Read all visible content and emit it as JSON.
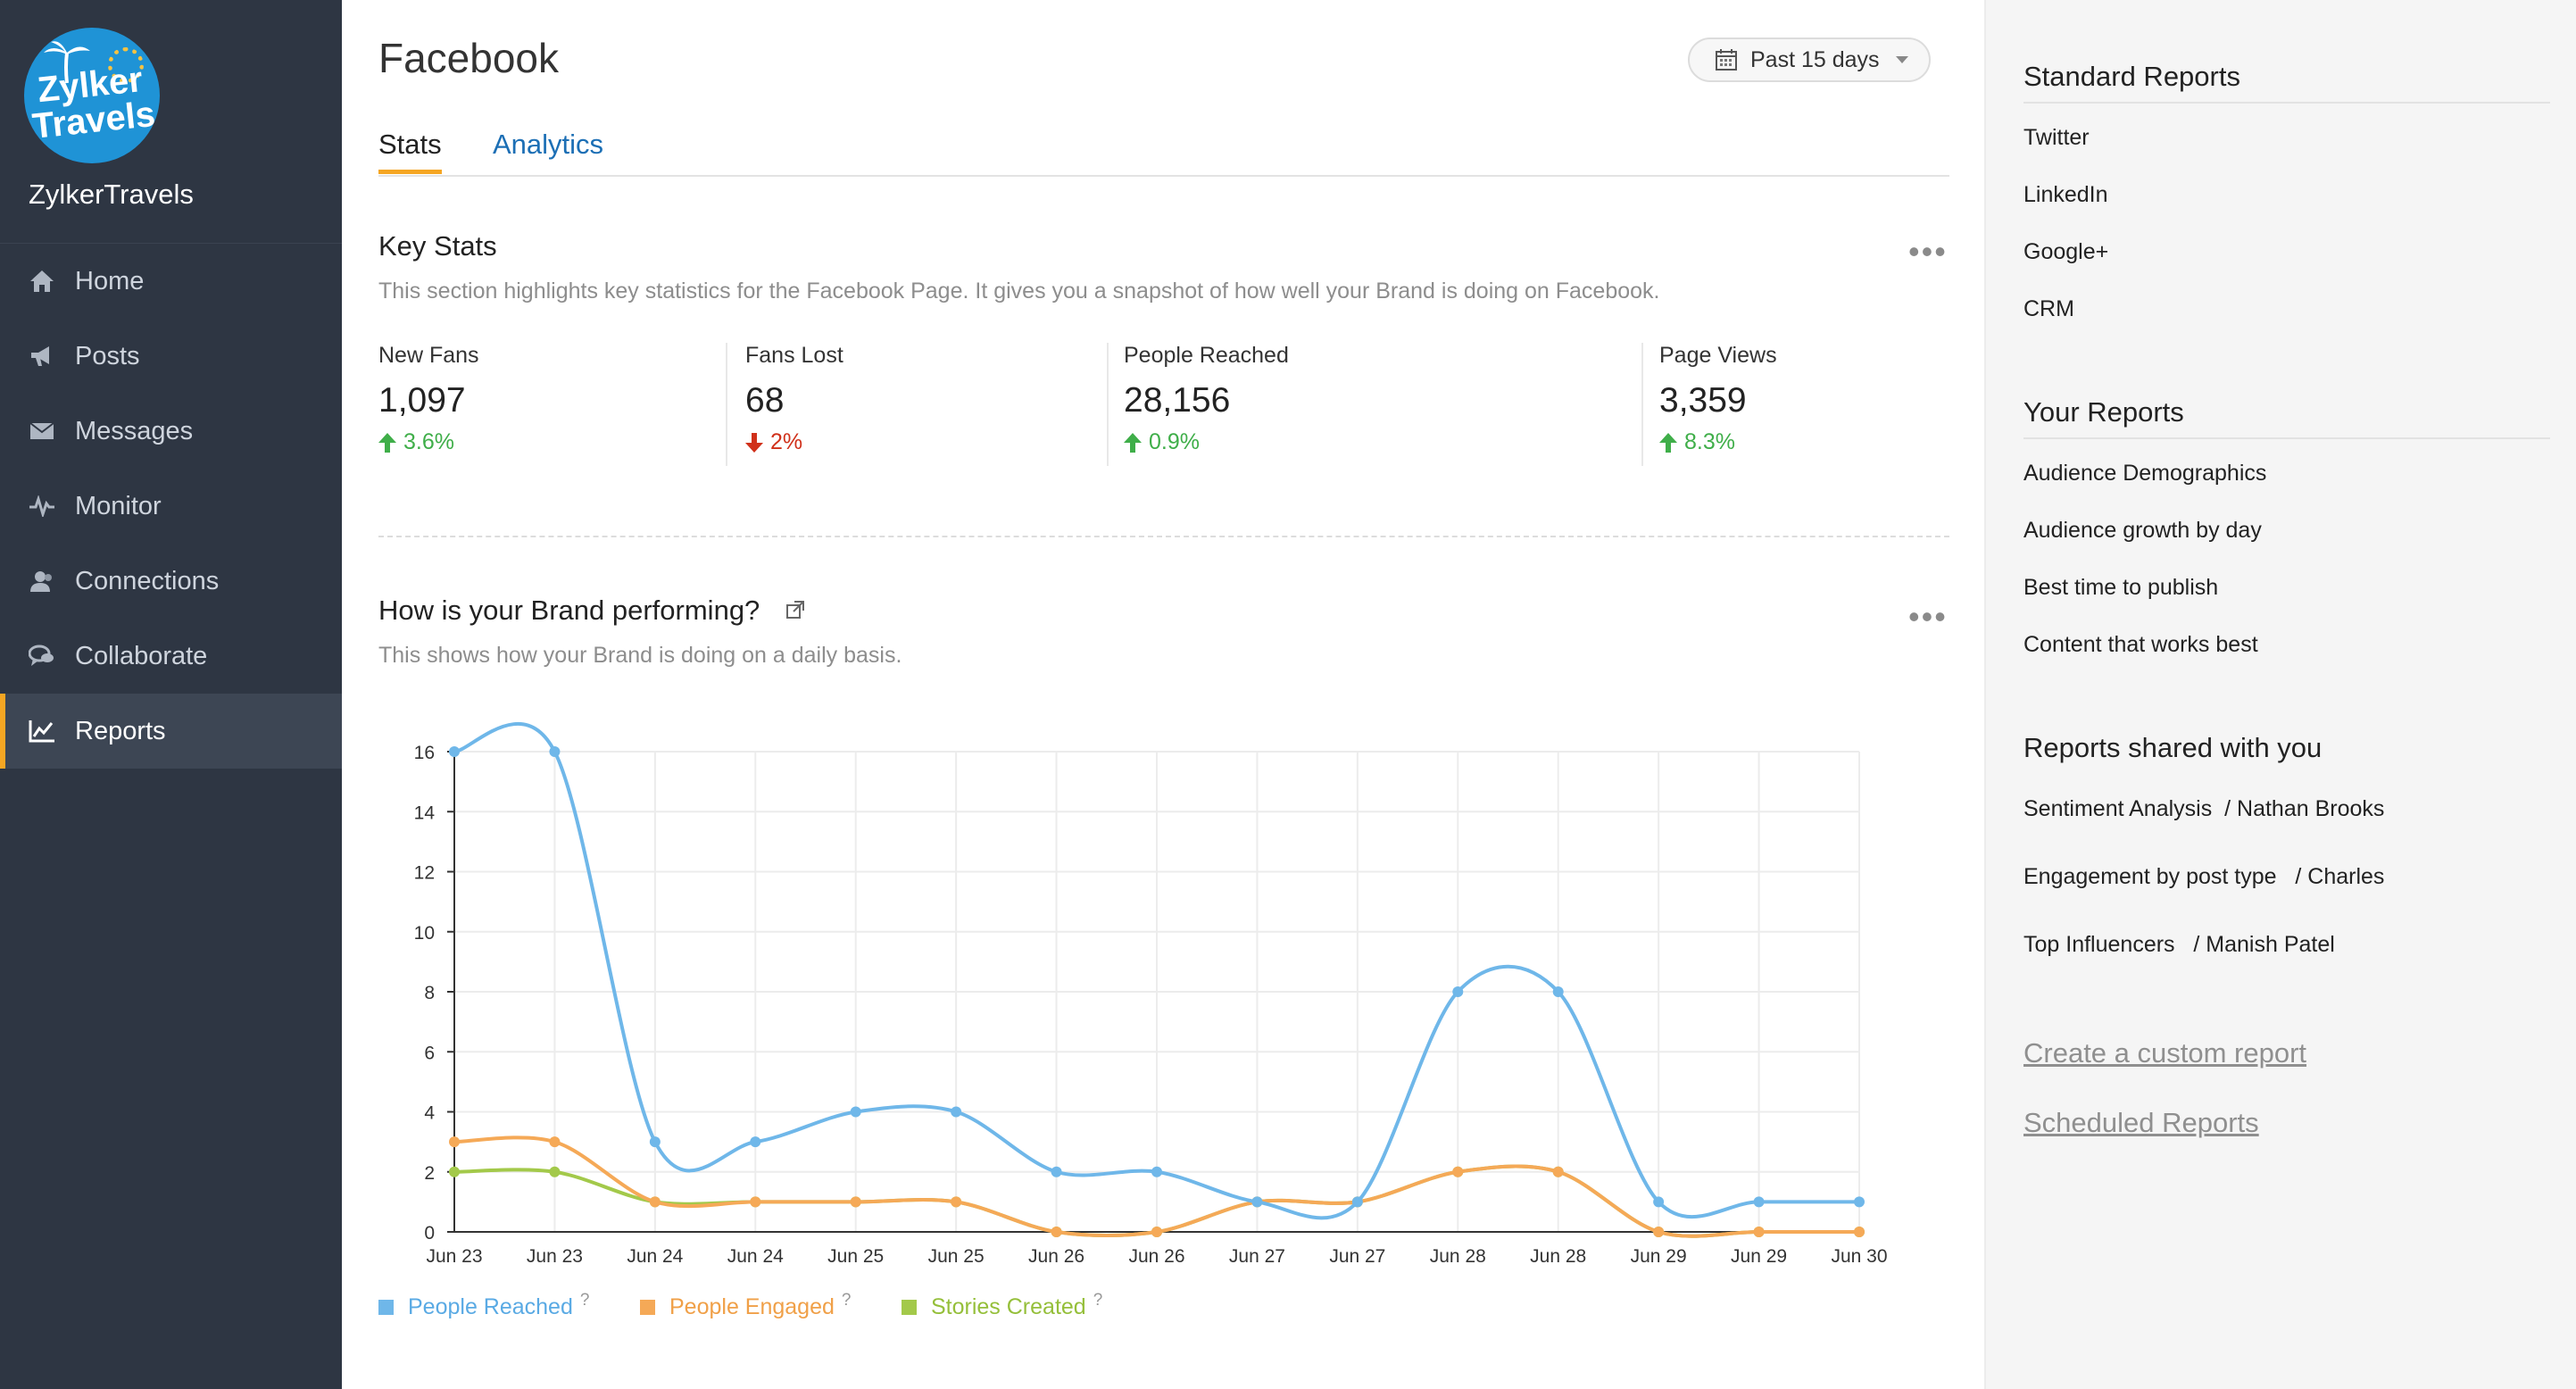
{
  "app": {
    "brand_name": "ZylkerTravels",
    "logo_text_line1": "Zylker",
    "logo_text_line2": "Travels"
  },
  "sidebar": {
    "items": [
      {
        "label": "Home",
        "icon": "home-icon"
      },
      {
        "label": "Posts",
        "icon": "megaphone-icon"
      },
      {
        "label": "Messages",
        "icon": "envelope-icon"
      },
      {
        "label": "Monitor",
        "icon": "pulse-icon"
      },
      {
        "label": "Connections",
        "icon": "users-icon"
      },
      {
        "label": "Collaborate",
        "icon": "chat-icon"
      },
      {
        "label": "Reports",
        "icon": "line-chart-icon",
        "active": true
      }
    ]
  },
  "header": {
    "title": "Facebook",
    "date_range": "Past 15 days",
    "tabs": [
      {
        "label": "Stats",
        "active": true
      },
      {
        "label": "Analytics",
        "active": false
      }
    ]
  },
  "key_stats": {
    "title": "Key Stats",
    "description": "This section highlights key statistics for the Facebook Page. It gives you a snapshot of how well your Brand is doing on Facebook.",
    "more": "•••",
    "stats": [
      {
        "label": "New Fans",
        "value": "1,097",
        "change": "3.6%",
        "direction": "up"
      },
      {
        "label": "Fans Lost",
        "value": "68",
        "change": "2%",
        "direction": "down"
      },
      {
        "label": "People Reached",
        "value": "28,156",
        "change": "0.9%",
        "direction": "up"
      },
      {
        "label": "Page Views",
        "value": "3,359",
        "change": "8.3%",
        "direction": "up"
      }
    ]
  },
  "performance": {
    "title": "How is your Brand performing?",
    "description": "This shows how your Brand is doing on a daily basis.",
    "more": "•••"
  },
  "chart_data": {
    "type": "line",
    "title": "",
    "xlabel": "",
    "ylabel": "",
    "x": [
      "Jun 23",
      "Jun 23",
      "Jun 24",
      "Jun 24",
      "Jun 25",
      "Jun 25",
      "Jun 26",
      "Jun 26",
      "Jun 27",
      "Jun 27",
      "Jun 28",
      "Jun 28",
      "Jun 29",
      "Jun 29",
      "Jun 30"
    ],
    "yticks": [
      0,
      2,
      4,
      6,
      8,
      10,
      12,
      14,
      16
    ],
    "ylim": [
      0,
      16
    ],
    "grid": true,
    "legend_position": "bottom-left",
    "series": [
      {
        "name": "People Reached",
        "color": "#6fb7e9",
        "values": [
          16,
          16,
          3,
          3,
          4,
          4,
          2,
          2,
          1,
          1,
          8,
          8,
          1,
          1,
          1
        ]
      },
      {
        "name": "People Engaged",
        "color": "#f5a957",
        "values": [
          3,
          3,
          1,
          1,
          1,
          1,
          0,
          0,
          1,
          1,
          2,
          2,
          0,
          0,
          0
        ]
      },
      {
        "name": "Stories Created",
        "color": "#a3c94a",
        "values": [
          2,
          2,
          1,
          1,
          1,
          1,
          0,
          0,
          1,
          1,
          2,
          2,
          0,
          0,
          0
        ]
      }
    ],
    "help_marker": "?"
  },
  "right_panel": {
    "standard_reports": {
      "heading": "Standard Reports",
      "items": [
        "Twitter",
        "LinkedIn",
        "Google+",
        "CRM"
      ]
    },
    "your_reports": {
      "heading": "Your Reports",
      "items": [
        "Audience Demographics",
        "Audience growth by day",
        "Best time to publish",
        "Content that works best"
      ]
    },
    "shared_reports": {
      "heading": "Reports shared with you",
      "items": [
        {
          "report": "Sentiment Analysis",
          "owner": "/ Nathan Brooks"
        },
        {
          "report": "Engagement by post type",
          "owner": "/ Charles"
        },
        {
          "report": "Top Influencers",
          "owner": "/ Manish Patel"
        }
      ]
    },
    "links": {
      "custom_report": "Create a custom report",
      "scheduled": "Scheduled Reports"
    }
  },
  "colors": {
    "sidebar_bg": "#2e3643",
    "accent": "#f5a623",
    "link": "#1c6fb5",
    "up": "#3fae49",
    "down": "#d0301a"
  }
}
